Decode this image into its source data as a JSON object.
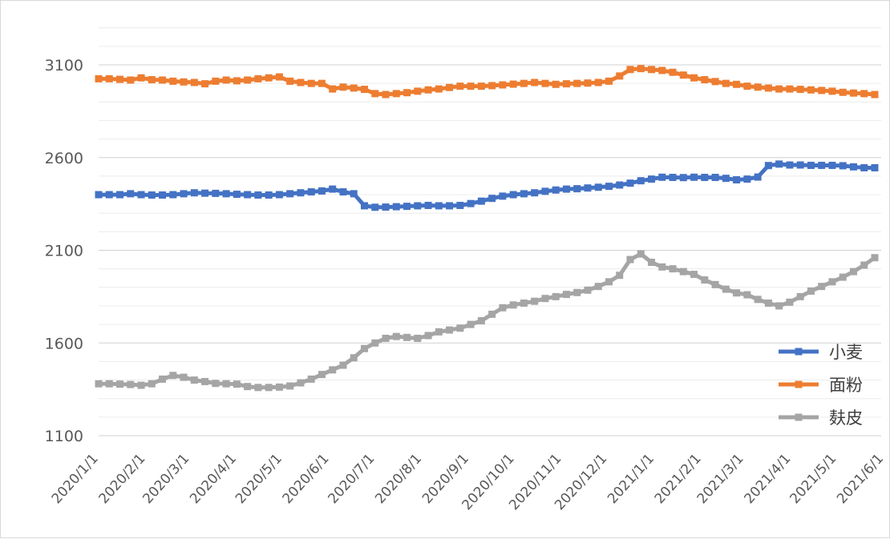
{
  "chart_data": {
    "type": "line",
    "title": "",
    "xlabel": "",
    "ylabel": "",
    "ylim": [
      1100,
      3300
    ],
    "y_ticks": [
      "1100",
      "1600",
      "2100",
      "2600",
      "3100"
    ],
    "y_tick_values": [
      1100,
      1600,
      2100,
      2600,
      3100
    ],
    "minor_grid_step": 100,
    "x_range_weeks": [
      0,
      73
    ],
    "x_ticks": [
      "2020/1/1",
      "2020/2/1",
      "2020/3/1",
      "2020/4/1",
      "2020/5/1",
      "2020/6/1",
      "2020/7/1",
      "2020/8/1",
      "2020/9/1",
      "2020/10/1",
      "2020/11/1",
      "2020/12/1",
      "2021/1/1",
      "2021/2/1",
      "2021/3/1",
      "2021/4/1",
      "2021/5/1",
      "2021/6/1"
    ],
    "x_tick_weeks": [
      0,
      4.43,
      8.57,
      13.0,
      17.29,
      21.71,
      26.0,
      30.43,
      34.86,
      39.14,
      43.57,
      47.86,
      52.29,
      56.71,
      60.71,
      65.14,
      69.43,
      73.86
    ],
    "legend_position": "right",
    "series": [
      {
        "name": "小麦",
        "color": "#4472C4",
        "x": [
          0,
          1,
          2,
          3,
          4,
          5,
          6,
          7,
          8,
          9,
          10,
          11,
          12,
          13,
          14,
          15,
          16,
          17,
          18,
          19,
          20,
          21,
          22,
          23,
          24,
          25,
          26,
          27,
          28,
          29,
          30,
          31,
          32,
          33,
          34,
          35,
          36,
          37,
          38,
          39,
          40,
          41,
          42,
          43,
          44,
          45,
          46,
          47,
          48,
          49,
          50,
          51,
          52,
          53,
          54,
          55,
          56,
          57,
          58,
          59,
          60,
          61,
          62,
          63,
          64,
          65,
          66,
          67,
          68,
          69,
          70,
          71,
          72,
          73
        ],
        "values": [
          2400,
          2400,
          2400,
          2405,
          2400,
          2398,
          2398,
          2400,
          2405,
          2410,
          2408,
          2407,
          2405,
          2402,
          2400,
          2398,
          2398,
          2400,
          2405,
          2410,
          2415,
          2420,
          2430,
          2415,
          2405,
          2340,
          2332,
          2333,
          2335,
          2337,
          2340,
          2342,
          2340,
          2340,
          2342,
          2352,
          2365,
          2380,
          2392,
          2400,
          2405,
          2410,
          2418,
          2425,
          2430,
          2432,
          2436,
          2440,
          2445,
          2452,
          2462,
          2475,
          2484,
          2494,
          2493,
          2492,
          2494,
          2493,
          2493,
          2488,
          2480,
          2484,
          2495,
          2557,
          2565,
          2560,
          2560,
          2558,
          2558,
          2558,
          2556,
          2550,
          2545,
          2545
        ]
      },
      {
        "name": "面粉",
        "color": "#ED7D31",
        "x": [
          0,
          1,
          2,
          3,
          4,
          5,
          6,
          7,
          8,
          9,
          10,
          11,
          12,
          13,
          14,
          15,
          16,
          17,
          18,
          19,
          20,
          21,
          22,
          23,
          24,
          25,
          26,
          27,
          28,
          29,
          30,
          31,
          32,
          33,
          34,
          35,
          36,
          37,
          38,
          39,
          40,
          41,
          42,
          43,
          44,
          45,
          46,
          47,
          48,
          49,
          50,
          51,
          52,
          53,
          54,
          55,
          56,
          57,
          58,
          59,
          60,
          61,
          62,
          63,
          64,
          65,
          66,
          67,
          68,
          69,
          70,
          71,
          72,
          73
        ],
        "values": [
          3025,
          3025,
          3022,
          3018,
          3030,
          3020,
          3018,
          3012,
          3008,
          3005,
          2998,
          3012,
          3018,
          3014,
          3018,
          3025,
          3030,
          3035,
          3012,
          3005,
          3000,
          3000,
          2970,
          2980,
          2975,
          2968,
          2945,
          2940,
          2945,
          2950,
          2958,
          2965,
          2970,
          2978,
          2985,
          2985,
          2985,
          2988,
          2992,
          2996,
          3000,
          3005,
          3000,
          2995,
          2998,
          3000,
          3002,
          3005,
          3012,
          3040,
          3075,
          3080,
          3075,
          3070,
          3060,
          3045,
          3030,
          3020,
          3010,
          3000,
          2995,
          2985,
          2980,
          2975,
          2970,
          2970,
          2968,
          2965,
          2962,
          2958,
          2952,
          2948,
          2945,
          2940
        ]
      },
      {
        "name": "麸皮",
        "color": "#A5A5A5",
        "x": [
          0,
          1,
          2,
          3,
          4,
          5,
          6,
          7,
          8,
          9,
          10,
          11,
          12,
          13,
          14,
          15,
          16,
          17,
          18,
          19,
          20,
          21,
          22,
          23,
          24,
          25,
          26,
          27,
          28,
          29,
          30,
          31,
          32,
          33,
          34,
          35,
          36,
          37,
          38,
          39,
          40,
          41,
          42,
          43,
          44,
          45,
          46,
          47,
          48,
          49,
          50,
          51,
          52,
          53,
          54,
          55,
          56,
          57,
          58,
          59,
          60,
          61,
          62,
          63,
          64,
          65,
          66,
          67,
          68,
          69,
          70,
          71,
          72,
          73
        ],
        "values": [
          1380,
          1380,
          1378,
          1376,
          1372,
          1380,
          1405,
          1425,
          1415,
          1400,
          1392,
          1382,
          1380,
          1378,
          1365,
          1360,
          1360,
          1362,
          1368,
          1385,
          1405,
          1430,
          1455,
          1480,
          1520,
          1570,
          1600,
          1625,
          1635,
          1630,
          1625,
          1640,
          1660,
          1670,
          1680,
          1700,
          1720,
          1755,
          1790,
          1805,
          1815,
          1825,
          1840,
          1850,
          1862,
          1872,
          1885,
          1905,
          1930,
          1965,
          2050,
          2080,
          2035,
          2010,
          2000,
          1985,
          1970,
          1940,
          1915,
          1890,
          1870,
          1860,
          1835,
          1815,
          1800,
          1820,
          1850,
          1880,
          1905,
          1930,
          1955,
          1985,
          2020,
          2060
        ]
      }
    ]
  }
}
